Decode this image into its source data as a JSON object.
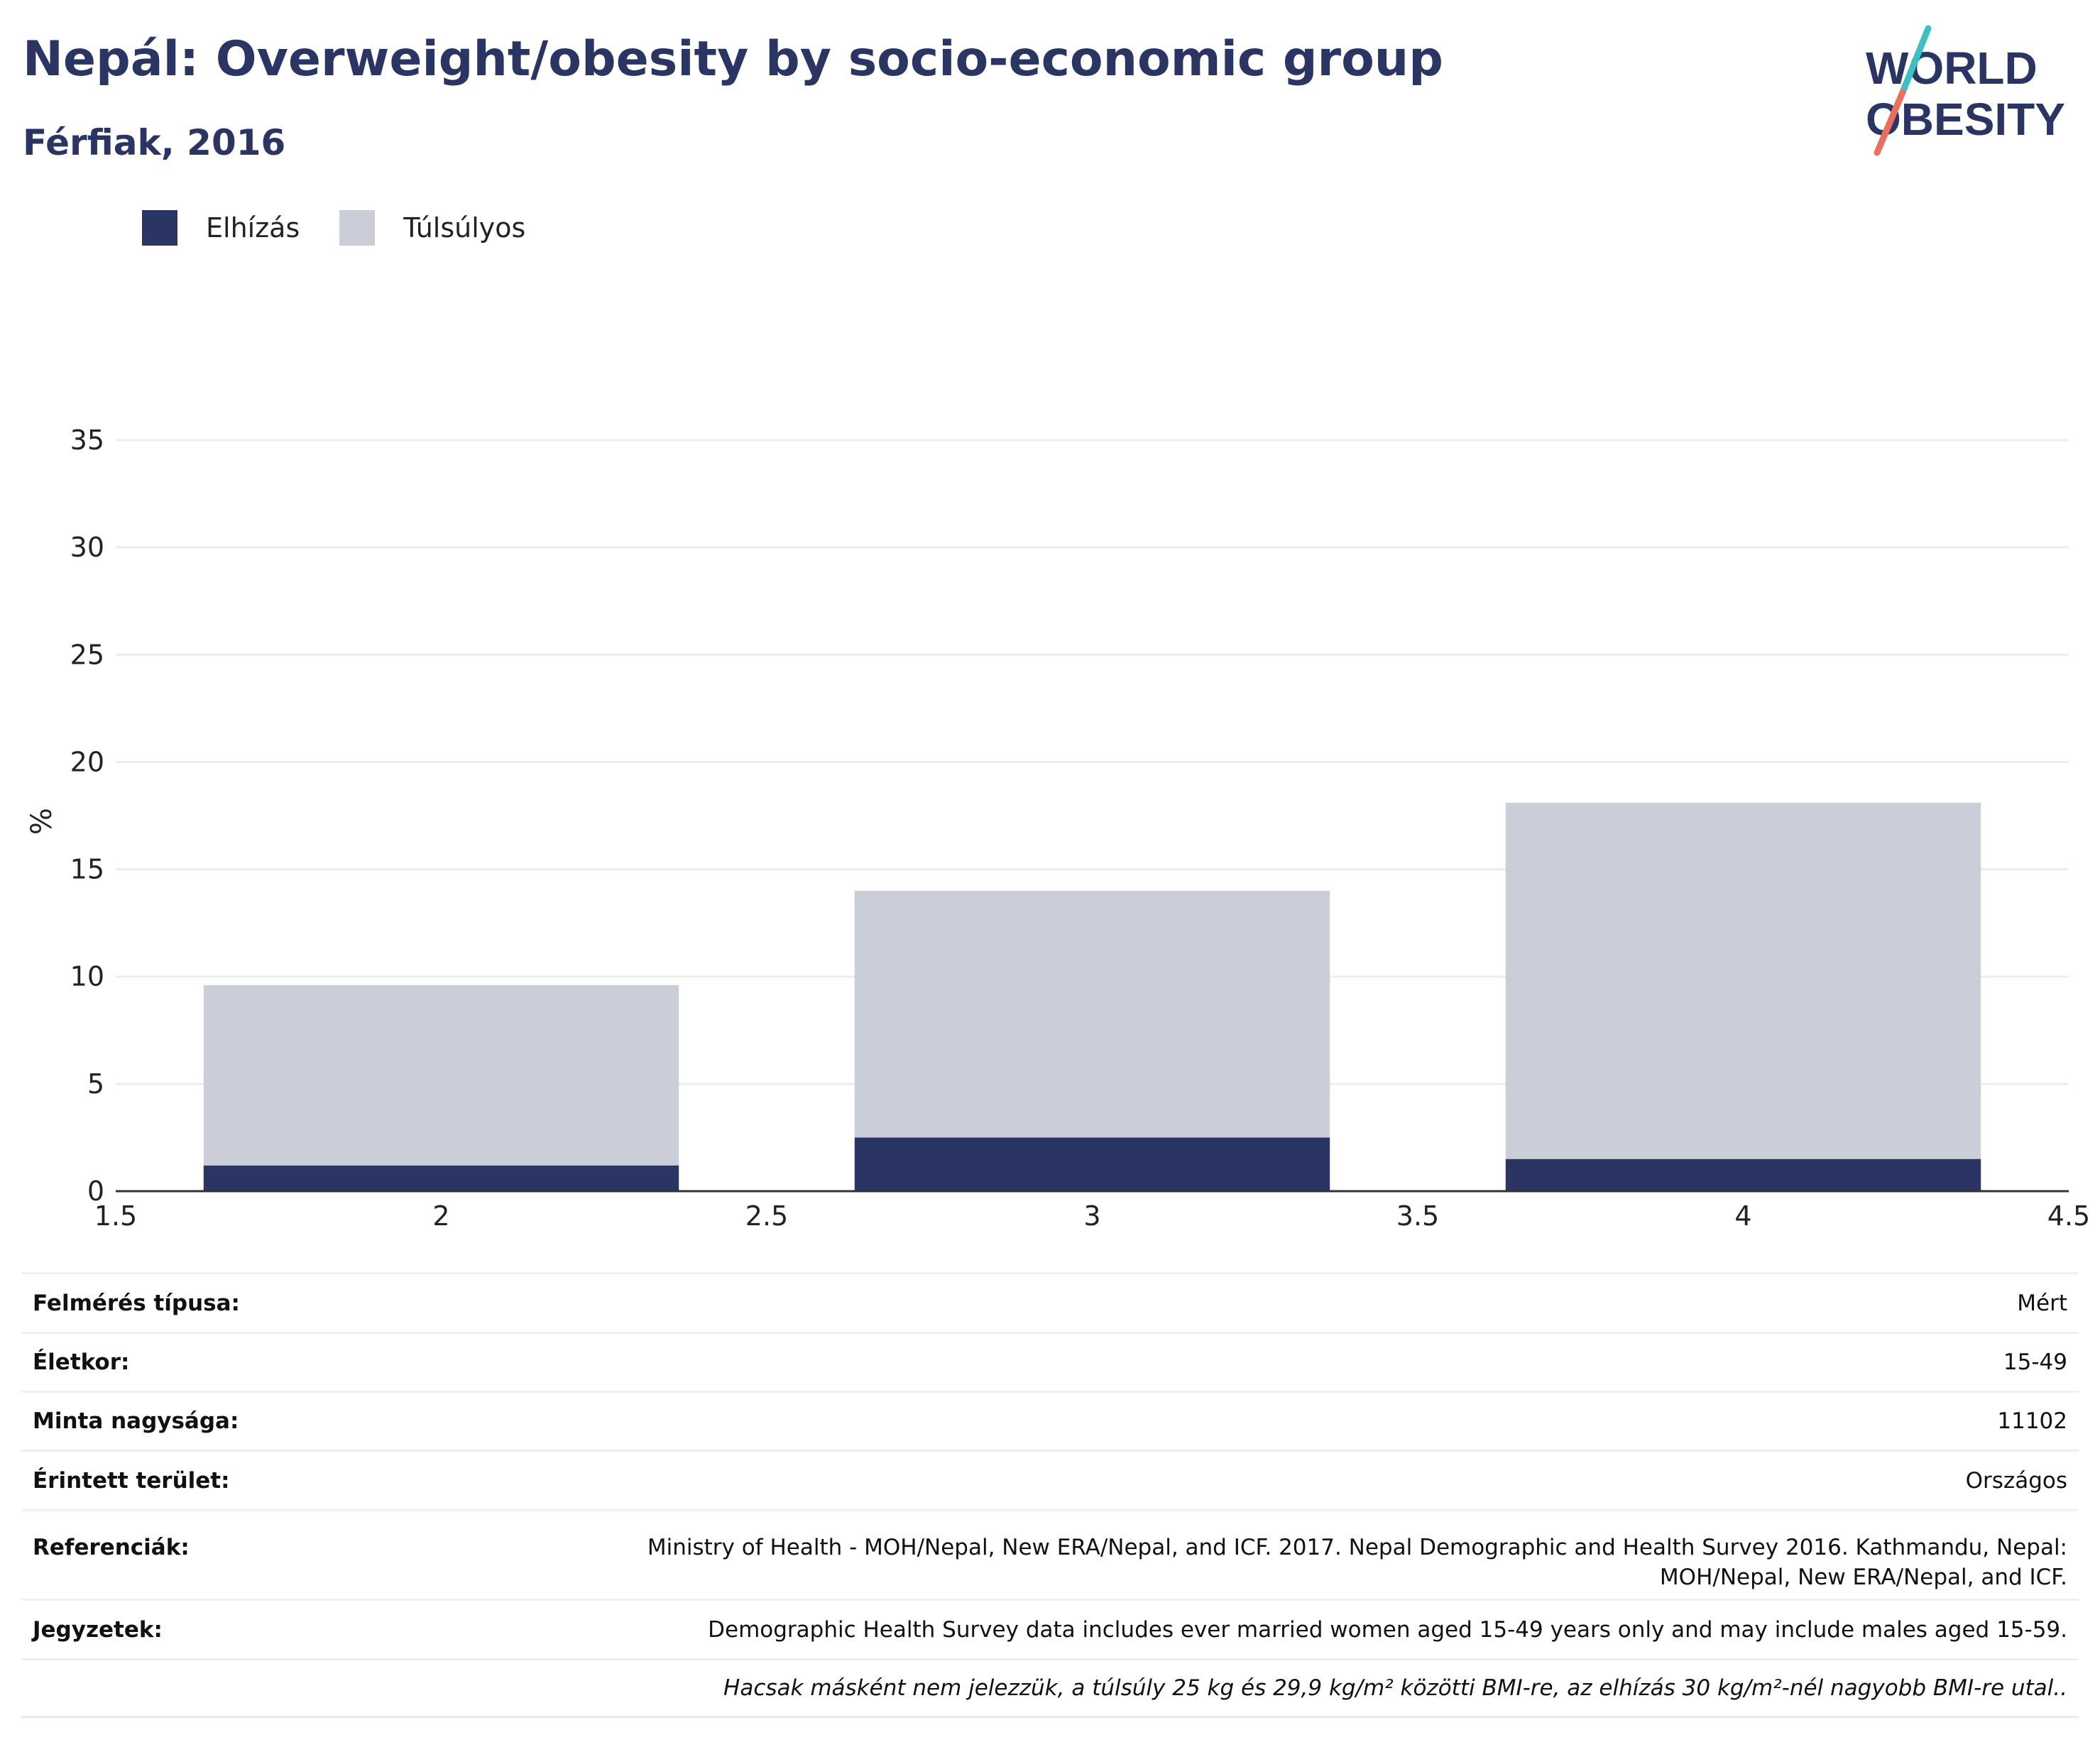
{
  "header": {
    "title": "Nepál: Overweight/obesity by socio-economic group",
    "subtitle": "Férfiak, 2016"
  },
  "logo": {
    "line1": "WORLD",
    "line2": "OBESITY",
    "colors": {
      "text": "#2a3563",
      "slash_top": "#3ebfc4",
      "slash_bottom": "#e8705e"
    }
  },
  "legend": [
    {
      "label": "Elhízás",
      "color": "#2a3563"
    },
    {
      "label": "Túlsúlyos",
      "color": "#cbcdd8"
    }
  ],
  "chart_data": {
    "type": "bar",
    "stacked": true,
    "x": [
      2,
      3,
      4
    ],
    "series": [
      {
        "name": "Elhízás",
        "color": "#2a3563",
        "values": [
          1.2,
          2.5,
          1.5
        ]
      },
      {
        "name": "Túlsúlyos",
        "color": "#cbcdd8",
        "values": [
          8.4,
          11.5,
          16.6
        ]
      }
    ],
    "totals": [
      9.6,
      14.0,
      18.1
    ],
    "xlim": [
      1.5,
      4.5
    ],
    "ylim": [
      0,
      35
    ],
    "x_ticks": [
      1.5,
      2,
      2.5,
      3,
      3.5,
      4,
      4.5
    ],
    "y_ticks": [
      0,
      5,
      10,
      15,
      20,
      25,
      30,
      35
    ],
    "x_tick_labels": [
      "1.5",
      "2",
      "2.5",
      "3",
      "3.5",
      "4",
      "4.5"
    ],
    "y_tick_labels": [
      "0",
      "5",
      "10",
      "15",
      "20",
      "25",
      "30",
      "35"
    ],
    "bar_width": 0.73,
    "ylabel": "%",
    "xlabel": "",
    "grid": true,
    "legend_position": "top-left"
  },
  "info_table": [
    {
      "key": "Felmérés típusa:",
      "value": "Mért"
    },
    {
      "key": "Életkor:",
      "value": "15-49"
    },
    {
      "key": "Minta nagysága:",
      "value": "11102"
    },
    {
      "key": "Érintett terület:",
      "value": "Országos"
    },
    {
      "key": "Referenciák:",
      "value": "Ministry of Health - MOH/Nepal, New ERA/Nepal, and ICF. 2017. Nepal Demographic and Health Survey 2016. Kathmandu, Nepal:",
      "value2": "MOH/Nepal, New ERA/Nepal, and ICF."
    },
    {
      "key": "Jegyzetek:",
      "value": "Demographic Health Survey data includes ever married women aged 15-49 years only and may include males aged 15-59."
    }
  ],
  "footnote": "Hacsak másként nem jelezzük, a túlsúly 25 kg és 29,9 kg/m² közötti BMI-re, az elhízás 30 kg/m²-nél nagyobb BMI-re utal.."
}
